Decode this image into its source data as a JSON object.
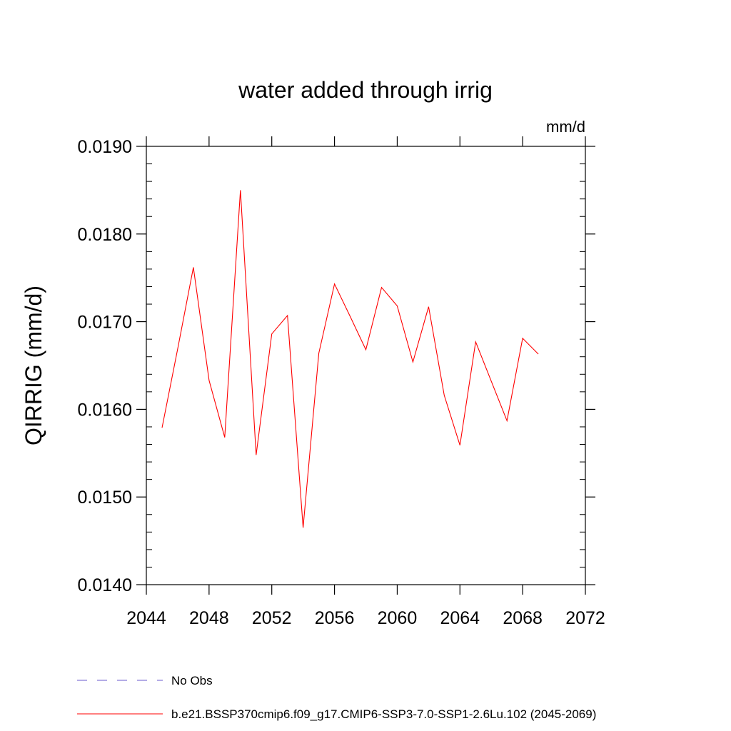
{
  "chart_data": {
    "type": "line",
    "title": "water added through irrig",
    "units_label": "mm/d",
    "ylabel": "QIRRIG  (mm/d)",
    "xlabel": "",
    "xlim": [
      2044,
      2072
    ],
    "ylim": [
      0.014,
      0.019
    ],
    "x_ticks": [
      2044,
      2048,
      2052,
      2056,
      2060,
      2064,
      2068,
      2072
    ],
    "x_tick_labels": [
      "2044",
      "2048",
      "2052",
      "2056",
      "2060",
      "2064",
      "2068",
      "2072"
    ],
    "y_ticks": [
      0.014,
      0.015,
      0.016,
      0.017,
      0.018,
      0.019
    ],
    "y_tick_labels": [
      "0.0140",
      "0.0150",
      "0.0160",
      "0.0170",
      "0.0180",
      "0.0190"
    ],
    "grid": false,
    "legend_position": "bottom-left",
    "series": [
      {
        "name": "No Obs",
        "color": "#6a5acd",
        "dash": "dashed",
        "x": [],
        "y": []
      },
      {
        "name": "b.e21.BSSP370cmip6.f09_g17.CMIP6-SSP3-7.0-SSP1-2.6Lu.102 (2045-2069)",
        "color": "#ff0000",
        "dash": "solid",
        "x": [
          2045,
          2046,
          2047,
          2048,
          2049,
          2050,
          2051,
          2052,
          2053,
          2054,
          2055,
          2056,
          2057,
          2058,
          2059,
          2060,
          2061,
          2062,
          2063,
          2064,
          2065,
          2066,
          2067,
          2068,
          2069
        ],
        "y": [
          0.01579,
          0.01669,
          0.01762,
          0.01633,
          0.01568,
          0.0185,
          0.01548,
          0.01686,
          0.01707,
          0.01465,
          0.01664,
          0.01743,
          0.01706,
          0.01668,
          0.01739,
          0.01718,
          0.01654,
          0.01717,
          0.01616,
          0.01559,
          0.01677,
          0.01632,
          0.01587,
          0.01681,
          0.01663
        ]
      }
    ]
  }
}
